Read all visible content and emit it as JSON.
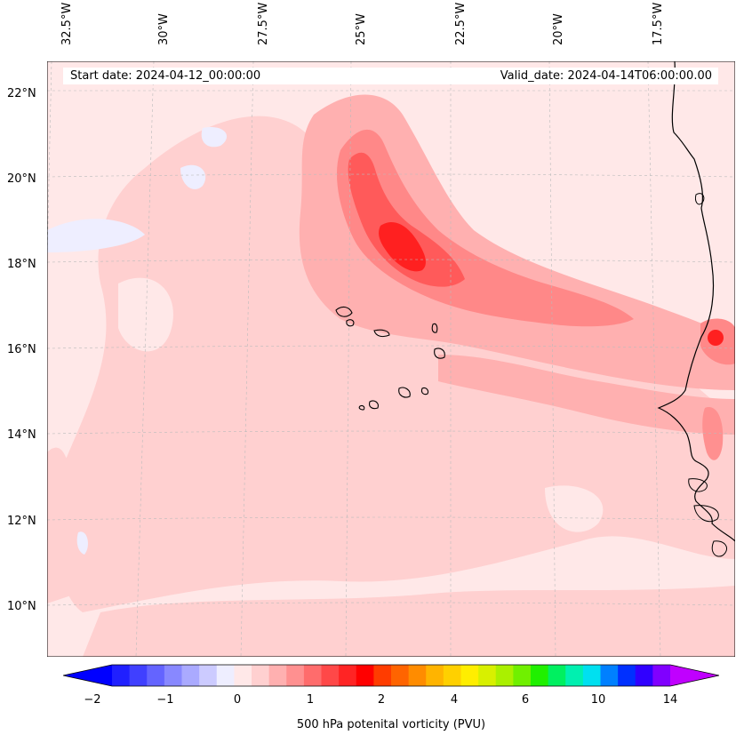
{
  "header": {
    "start_date": "Start date: 2024-04-12_00:00:00",
    "valid_date": "Valid_date: 2024-04-14T06:00:00.00"
  },
  "map": {
    "lon_labels": [
      "32.5°W",
      "30°W",
      "27.5°W",
      "25°W",
      "22.5°W",
      "20°W",
      "17.5°W"
    ],
    "lat_labels": [
      "22°N",
      "20°N",
      "18°N",
      "16°N",
      "14°N",
      "12°N",
      "10°N"
    ],
    "colors": {
      "background_fill": "#ffe8e8",
      "light": "#ffd0d0",
      "mid": "#ffb0b0",
      "strong": "#ff8888",
      "stronger": "#ff5a5a",
      "peak": "#ff2020",
      "negative": "#eeeeff",
      "coast": "#000000"
    }
  },
  "colorbar": {
    "label": "500 hPa potenital vorticity (PVU)",
    "tick_labels": [
      "−2",
      "−1",
      "0",
      "1",
      "2",
      "4",
      "6",
      "10",
      "14"
    ],
    "colors": [
      "#0000ff",
      "#2020ff",
      "#4040ff",
      "#6464ff",
      "#8888ff",
      "#aaaaff",
      "#cccbff",
      "#eeeeff",
      "#ffe8e8",
      "#ffd0d0",
      "#ffb0b0",
      "#ff9090",
      "#ff6c6c",
      "#ff4848",
      "#ff2424",
      "#ff0000",
      "#ff3c00",
      "#ff6400",
      "#ff8c00",
      "#ffb400",
      "#ffd000",
      "#ffee00",
      "#d8f000",
      "#aaf000",
      "#70f000",
      "#20f000",
      "#00f060",
      "#00f0b0",
      "#00e0f0",
      "#0080ff",
      "#0030ff",
      "#3000ff",
      "#8000ff",
      "#c000ff"
    ]
  }
}
